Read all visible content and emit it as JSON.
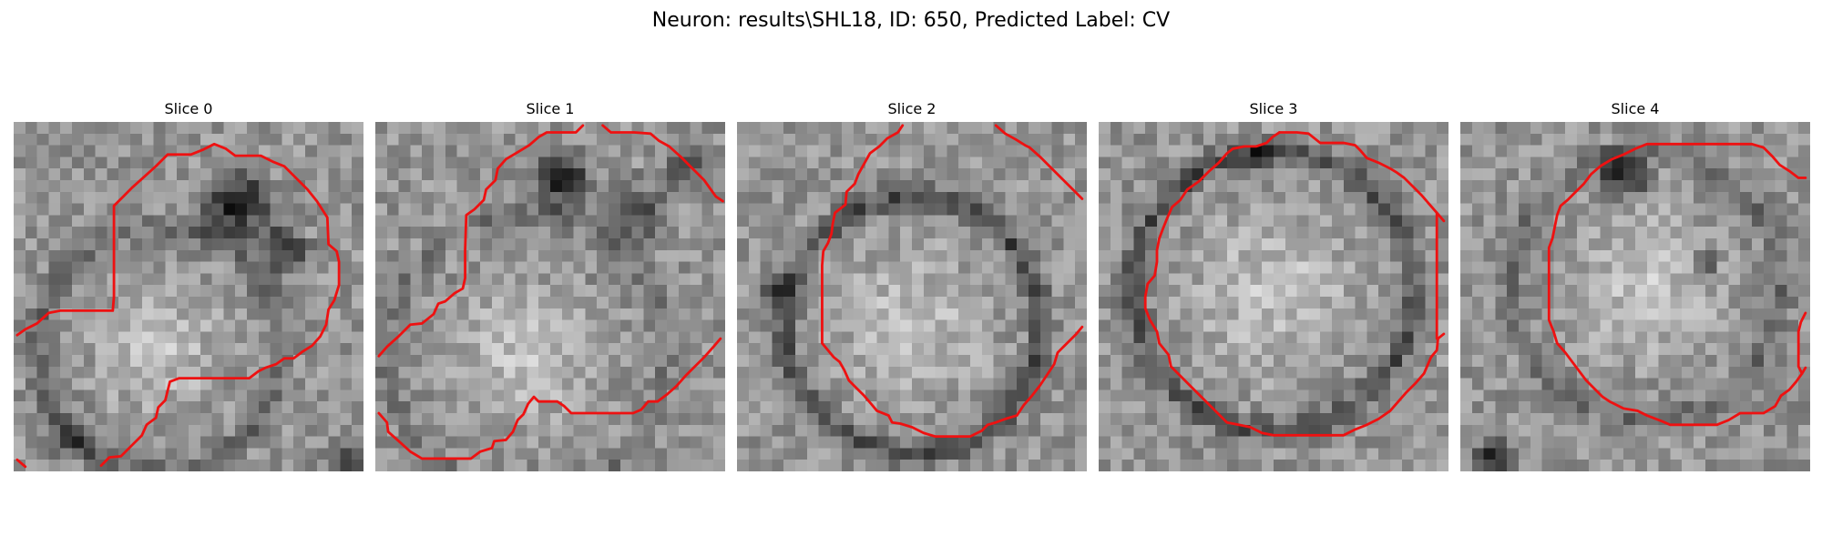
{
  "figure": {
    "title": "Neuron: results\\SHL18, ID: 650, Predicted Label: CV"
  },
  "colors": {
    "contour": "#ee1111",
    "background": "#ffffff"
  },
  "colormap": "gray",
  "panels": [
    {
      "title": "Slice 0"
    },
    {
      "title": "Slice 1"
    },
    {
      "title": "Slice 2"
    },
    {
      "title": "Slice 3"
    },
    {
      "title": "Slice 4"
    }
  ]
}
